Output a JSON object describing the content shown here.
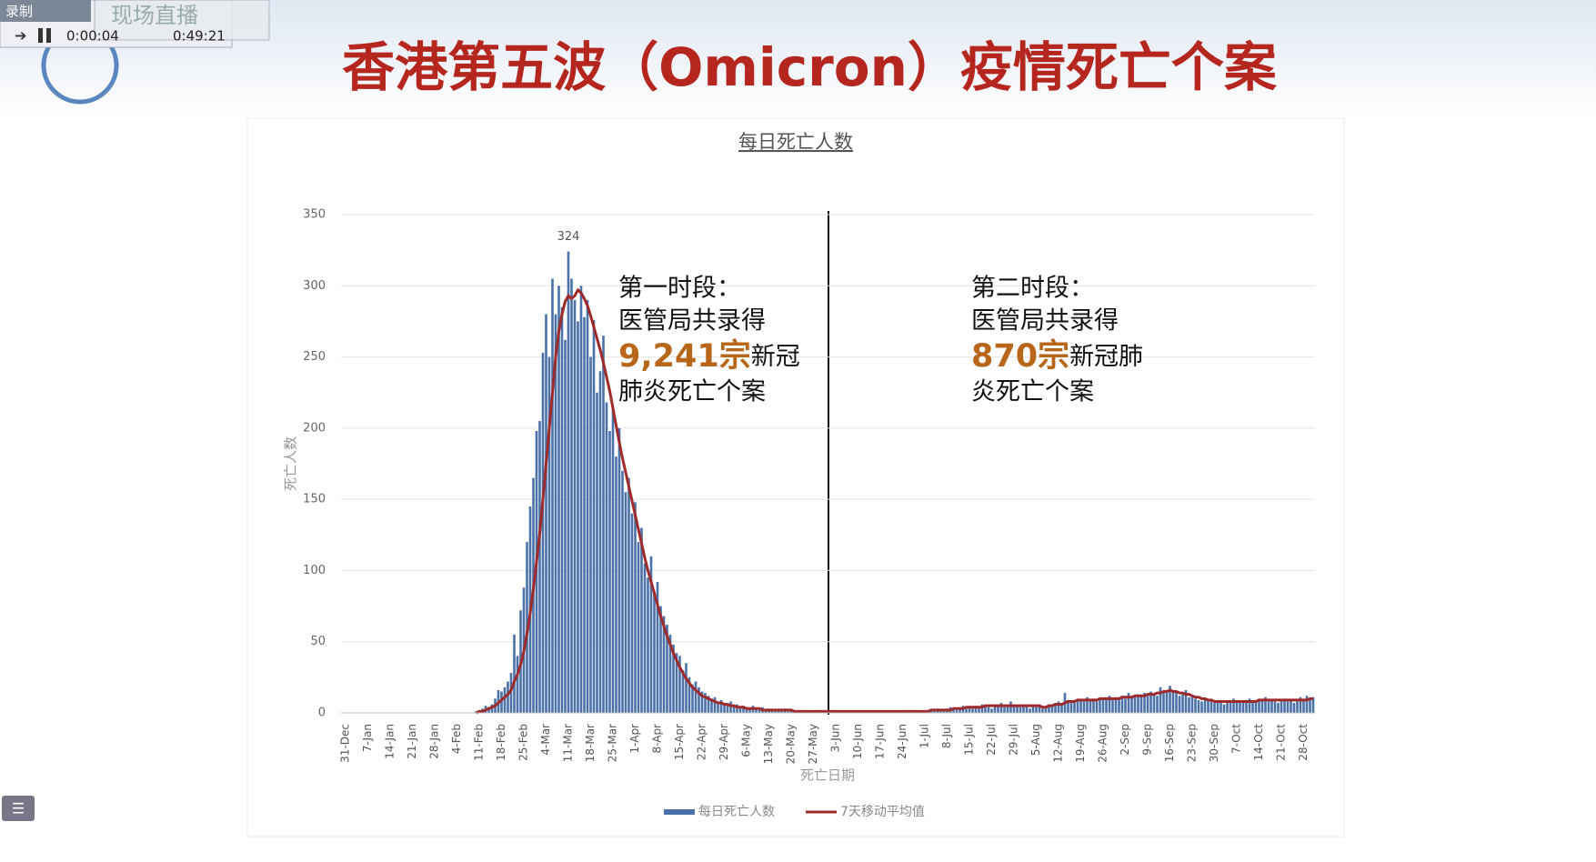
{
  "toolbar": {
    "record": "录制",
    "live": "现场直播",
    "elapsed": "0:00:04",
    "remaining": "0:49:21"
  },
  "header": {
    "title": "香港第五波（Omicron）疫情死亡个案"
  },
  "chart_data": {
    "type": "bar",
    "title": "每日死亡人数",
    "y_label": "死亡人数",
    "x_label": "死亡日期",
    "grid": true,
    "ylim": [
      0,
      350
    ],
    "yticks": [
      0,
      50,
      100,
      150,
      200,
      250,
      300,
      350
    ],
    "categories": [
      "31-Dec",
      null,
      null,
      null,
      null,
      null,
      null,
      "7-Jan",
      null,
      null,
      null,
      null,
      null,
      null,
      "14-Jan",
      null,
      null,
      null,
      null,
      null,
      null,
      "21-Jan",
      null,
      null,
      null,
      null,
      null,
      null,
      "28-Jan",
      null,
      null,
      null,
      null,
      null,
      null,
      "4-Feb",
      null,
      null,
      null,
      null,
      null,
      null,
      "11-Feb",
      null,
      null,
      null,
      null,
      null,
      null,
      "18-Feb",
      null,
      null,
      null,
      null,
      null,
      null,
      "25-Feb",
      null,
      null,
      null,
      null,
      null,
      null,
      "4-Mar",
      null,
      null,
      null,
      null,
      null,
      null,
      "11-Mar",
      null,
      null,
      null,
      null,
      null,
      null,
      "18-Mar",
      null,
      null,
      null,
      null,
      null,
      null,
      "25-Mar",
      null,
      null,
      null,
      null,
      null,
      null,
      "1-Apr",
      null,
      null,
      null,
      null,
      null,
      null,
      "8-Apr",
      null,
      null,
      null,
      null,
      null,
      null,
      "15-Apr",
      null,
      null,
      null,
      null,
      null,
      null,
      "22-Apr",
      null,
      null,
      null,
      null,
      null,
      null,
      "29-Apr",
      null,
      null,
      null,
      null,
      null,
      null,
      "6-May",
      null,
      null,
      null,
      null,
      null,
      null,
      "13-May",
      null,
      null,
      null,
      null,
      null,
      null,
      "20-May",
      null,
      null,
      null,
      null,
      null,
      null,
      "27-May",
      null,
      null,
      null,
      null,
      null,
      null,
      "3-Jun",
      null,
      null,
      null,
      null,
      null,
      null,
      "10-Jun",
      null,
      null,
      null,
      null,
      null,
      null,
      "17-Jun",
      null,
      null,
      null,
      null,
      null,
      null,
      "24-Jun",
      null,
      null,
      null,
      null,
      null,
      null,
      "1-Jul",
      null,
      null,
      null,
      null,
      null,
      null,
      "8-Jul",
      null,
      null,
      null,
      null,
      null,
      null,
      "15-Jul",
      null,
      null,
      null,
      null,
      null,
      null,
      "22-Jul",
      null,
      null,
      null,
      null,
      null,
      null,
      "29-Jul",
      null,
      null,
      null,
      null,
      null,
      null,
      "5-Aug",
      null,
      null,
      null,
      null,
      null,
      null,
      "12-Aug",
      null,
      null,
      null,
      null,
      null,
      null,
      "19-Aug",
      null,
      null,
      null,
      null,
      null,
      null,
      "26-Aug",
      null,
      null,
      null,
      null,
      null,
      null,
      "2-Sep",
      null,
      null,
      null,
      null,
      null,
      null,
      "9-Sep",
      null,
      null,
      null,
      null,
      null,
      null,
      "16-Sep",
      null,
      null,
      null,
      null,
      null,
      null,
      "23-Sep",
      null,
      null,
      null,
      null,
      null,
      null,
      "30-Sep",
      null,
      null,
      null,
      null,
      null,
      null,
      "7-Oct",
      null,
      null,
      null,
      null,
      null,
      null,
      "14-Oct",
      null,
      null,
      null,
      null,
      null,
      null,
      "21-Oct",
      null,
      null,
      null,
      null,
      null,
      null,
      "28-Oct",
      null,
      null,
      null
    ],
    "series": [
      {
        "name": "每日死亡人数",
        "color": "#4a72a8",
        "values": [
          0,
          0,
          0,
          0,
          0,
          0,
          0,
          0,
          0,
          0,
          0,
          0,
          0,
          0,
          0,
          0,
          0,
          0,
          0,
          0,
          0,
          0,
          0,
          0,
          0,
          0,
          0,
          0,
          0,
          0,
          0,
          0,
          0,
          0,
          0,
          0,
          0,
          0,
          0,
          0,
          0,
          1,
          2,
          3,
          5,
          4,
          6,
          10,
          16,
          15,
          18,
          22,
          28,
          55,
          40,
          72,
          88,
          120,
          145,
          165,
          198,
          205,
          253,
          280,
          250,
          305,
          280,
          300,
          285,
          262,
          324,
          305,
          290,
          275,
          300,
          278,
          290,
          250,
          276,
          225,
          240,
          265,
          218,
          198,
          215,
          180,
          200,
          170,
          155,
          165,
          140,
          148,
          120,
          130,
          105,
          95,
          110,
          85,
          92,
          75,
          68,
          62,
          55,
          48,
          42,
          40,
          30,
          35,
          25,
          20,
          22,
          18,
          15,
          14,
          12,
          10,
          11,
          8,
          9,
          7,
          6,
          8,
          5,
          6,
          4,
          5,
          4,
          3,
          5,
          3,
          2,
          4,
          2,
          3,
          2,
          1,
          2,
          1,
          3,
          1,
          2,
          1,
          1,
          2,
          1,
          0,
          1,
          1,
          2,
          1,
          1,
          0,
          1,
          2,
          1,
          0,
          1,
          0,
          1,
          1,
          0,
          1,
          0,
          1,
          1,
          0,
          1,
          0,
          1,
          0,
          1,
          1,
          0,
          1,
          1,
          2,
          1,
          0,
          1,
          2,
          1,
          1,
          2,
          1,
          2,
          1,
          3,
          2,
          1,
          3,
          4,
          3,
          2,
          4,
          5,
          3,
          4,
          3,
          5,
          4,
          6,
          5,
          4,
          3,
          6,
          5,
          7,
          4,
          5,
          8,
          6,
          5,
          4,
          6,
          5,
          3,
          6,
          4,
          5,
          3,
          4,
          6,
          5,
          7,
          8,
          6,
          14,
          9,
          7,
          8,
          10,
          9,
          8,
          11,
          9,
          10,
          8,
          9,
          10,
          11,
          12,
          9,
          11,
          10,
          12,
          10,
          14,
          11,
          12,
          13,
          12,
          14,
          12,
          15,
          13,
          12,
          18,
          14,
          16,
          19,
          15,
          14,
          12,
          13,
          16,
          11,
          12,
          10,
          9,
          8,
          10,
          9,
          8,
          7,
          9,
          8,
          6,
          7,
          9,
          10,
          8,
          7,
          8,
          9,
          10,
          7,
          8,
          10,
          9,
          11,
          8,
          9,
          8,
          7,
          9,
          10,
          8,
          9,
          7,
          8,
          11,
          9,
          12,
          10,
          11
        ]
      },
      {
        "name": "7天移动平均值",
        "color": "#9e2a2b",
        "values": [
          null,
          null,
          null,
          null,
          null,
          null,
          null,
          null,
          null,
          null,
          null,
          null,
          null,
          null,
          null,
          null,
          null,
          null,
          null,
          null,
          null,
          null,
          null,
          null,
          null,
          null,
          null,
          null,
          null,
          null,
          null,
          null,
          null,
          null,
          null,
          null,
          null,
          null,
          null,
          null,
          null,
          0,
          1,
          1,
          2,
          3,
          4,
          5,
          7,
          9,
          11,
          13,
          16,
          22,
          27,
          34,
          43,
          56,
          70,
          87,
          106,
          126,
          150,
          175,
          200,
          225,
          250,
          268,
          280,
          289,
          293,
          291,
          293,
          297,
          295,
          291,
          286,
          279,
          271,
          263,
          255,
          246,
          236,
          226,
          214,
          202,
          190,
          179,
          169,
          159,
          149,
          139,
          129,
          119,
          109,
          100,
          92,
          84,
          76,
          68,
          61,
          54,
          48,
          42,
          37,
          32,
          28,
          24,
          21,
          18,
          16,
          14,
          12,
          11,
          10,
          9,
          8,
          7,
          7,
          6,
          6,
          5,
          5,
          4,
          4,
          4,
          3,
          3,
          3,
          3,
          3,
          2,
          2,
          2,
          2,
          2,
          2,
          2,
          2,
          2,
          2,
          1,
          1,
          1,
          1,
          1,
          1,
          1,
          1,
          1,
          1,
          1,
          1,
          1,
          1,
          1,
          1,
          1,
          1,
          1,
          1,
          1,
          1,
          1,
          1,
          1,
          1,
          1,
          1,
          1,
          1,
          1,
          1,
          1,
          1,
          1,
          1,
          1,
          1,
          1,
          1,
          1,
          1,
          1,
          2,
          2,
          2,
          2,
          2,
          2,
          2,
          3,
          3,
          3,
          3,
          4,
          4,
          4,
          4,
          4,
          4,
          5,
          5,
          5,
          5,
          5,
          5,
          5,
          5,
          5,
          5,
          5,
          5,
          5,
          5,
          5,
          5,
          5,
          5,
          4,
          4,
          5,
          5,
          6,
          6,
          6,
          7,
          8,
          8,
          8,
          9,
          9,
          9,
          9,
          9,
          9,
          9,
          10,
          10,
          10,
          10,
          10,
          10,
          10,
          11,
          11,
          11,
          11,
          12,
          12,
          12,
          12,
          13,
          13,
          13,
          14,
          14,
          15,
          15,
          16,
          15,
          15,
          14,
          14,
          13,
          13,
          12,
          11,
          11,
          10,
          10,
          9,
          9,
          8,
          8,
          8,
          8,
          8,
          8,
          8,
          8,
          8,
          8,
          8,
          8,
          8,
          8,
          9,
          9,
          9,
          9,
          9,
          9,
          9,
          9,
          9,
          9,
          9,
          9,
          9,
          9,
          9,
          9,
          10,
          10
        ]
      }
    ],
    "annotations": [
      {
        "heading": "第一时段：",
        "line": "医管局共录得",
        "count": "9,241宗",
        "rest": "新冠",
        "tail": "肺炎死亡个案"
      },
      {
        "heading": "第二时段：",
        "line": "医管局共录得",
        "count": "870宗",
        "rest": "新冠肺",
        "tail": "炎死亡个案"
      }
    ]
  }
}
